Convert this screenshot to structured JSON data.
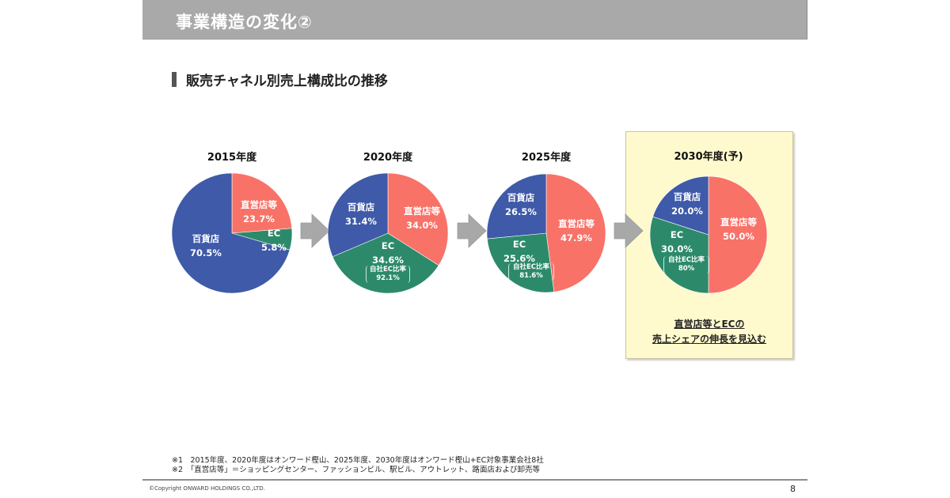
{
  "header": {
    "title": "事業構造の変化②"
  },
  "section": {
    "title": "販売チャネル別売上構成比の推移"
  },
  "colors": {
    "direct": "#f87268",
    "ec": "#2c8a6b",
    "department": "#3e5aa8",
    "arrow": "#a8a8a8",
    "highlight": "#fffacd"
  },
  "chart_data": [
    {
      "type": "pie",
      "title": "2015年度",
      "slices": [
        {
          "label": "直営店等",
          "value": 23.7,
          "value_text": "23.7%"
        },
        {
          "label": "EC",
          "value": 5.8,
          "value_text": "5.8%"
        },
        {
          "label": "百貨店",
          "value": 70.5,
          "value_text": "70.5%"
        }
      ]
    },
    {
      "type": "pie",
      "title": "2020年度",
      "slices": [
        {
          "label": "直営店等",
          "value": 34.0,
          "value_text": "34.0%"
        },
        {
          "label": "EC",
          "value": 34.6,
          "value_text": "34.6%",
          "sub_label": "自社EC比率",
          "sub_value": "92.1%"
        },
        {
          "label": "百貨店",
          "value": 31.4,
          "value_text": "31.4%"
        }
      ]
    },
    {
      "type": "pie",
      "title": "2025年度",
      "slices": [
        {
          "label": "直営店等",
          "value": 47.9,
          "value_text": "47.9%"
        },
        {
          "label": "EC",
          "value": 25.6,
          "value_text": "25.6%",
          "sub_label": "自社EC比率",
          "sub_value": "81.6%"
        },
        {
          "label": "百貨店",
          "value": 26.5,
          "value_text": "26.5%"
        }
      ]
    },
    {
      "type": "pie",
      "title": "2030年度(予)",
      "slices": [
        {
          "label": "直営店等",
          "value": 50.0,
          "value_text": "50.0%"
        },
        {
          "label": "EC",
          "value": 30.0,
          "value_text": "30.0%",
          "sub_label": "自社EC比率",
          "sub_value": "80%"
        },
        {
          "label": "百貨店",
          "value": 20.0,
          "value_text": "20.0%"
        }
      ]
    }
  ],
  "conclusion": {
    "line1": "直営店等とECの",
    "line2": "売上シェアの伸長を見込む"
  },
  "notes": [
    "※1　2015年度、2020年度はオンワード樫山、2025年度、2030年度はオンワード樫山+EC対象事業会社8社",
    "※2　「直営店等」＝ショッピングセンター、ファッションビル、駅ビル、アウトレット、路面店および卸売等"
  ],
  "footer": {
    "copyright": "©Copyright ONWARD HOLDINGS CO.,LTD.",
    "page_number": "8"
  }
}
